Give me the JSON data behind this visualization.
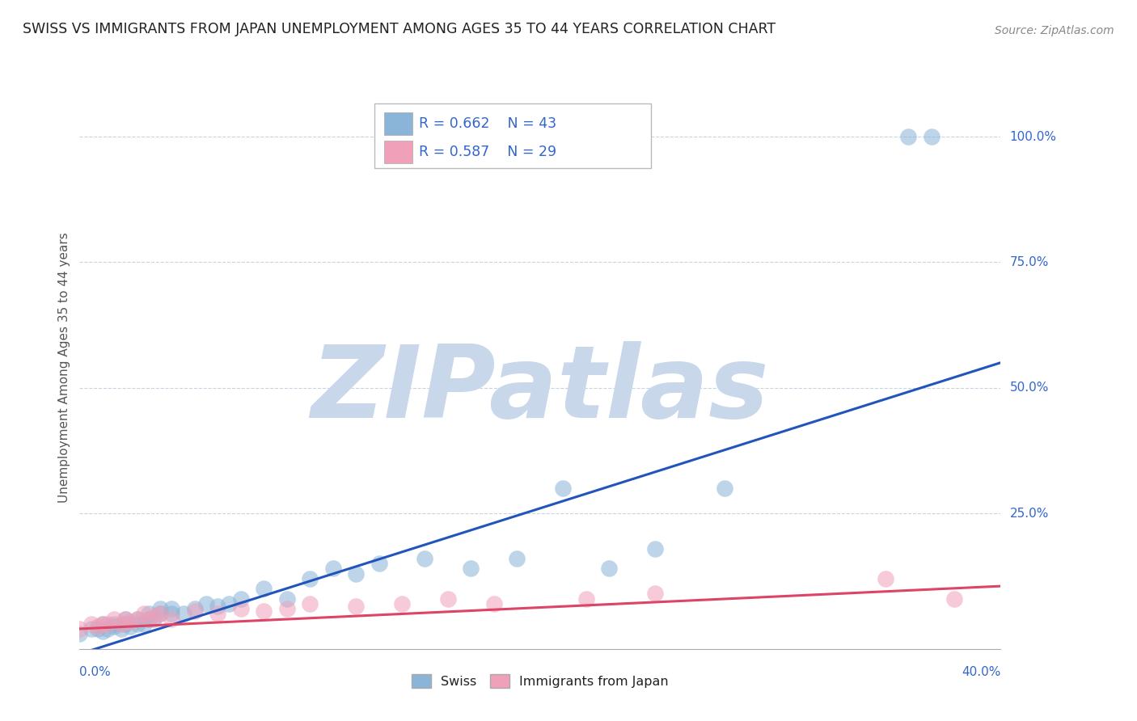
{
  "title": "SWISS VS IMMIGRANTS FROM JAPAN UNEMPLOYMENT AMONG AGES 35 TO 44 YEARS CORRELATION CHART",
  "source": "Source: ZipAtlas.com",
  "ylabel": "Unemployment Among Ages 35 to 44 years",
  "xlim": [
    0.0,
    0.4
  ],
  "ylim": [
    -0.02,
    1.1
  ],
  "ytick_labels": [
    "25.0%",
    "50.0%",
    "75.0%",
    "100.0%"
  ],
  "ytick_vals": [
    0.25,
    0.5,
    0.75,
    1.0
  ],
  "grid_color": "#c8d4e0",
  "background_color": "#ffffff",
  "watermark": "ZIPatlas",
  "watermark_color": "#c8d8ea",
  "swiss_color": "#8ab4d8",
  "japan_color": "#f0a0b8",
  "swiss_line_color": "#2255bb",
  "japan_line_color": "#dd4466",
  "swiss_R": 0.662,
  "swiss_N": 43,
  "japan_R": 0.587,
  "japan_N": 29,
  "legend_text_color": "#3366cc",
  "title_color": "#222222",
  "axis_label_color": "#555555",
  "swiss_x": [
    0.0,
    0.005,
    0.008,
    0.01,
    0.01,
    0.012,
    0.015,
    0.015,
    0.018,
    0.02,
    0.02,
    0.022,
    0.025,
    0.025,
    0.028,
    0.03,
    0.03,
    0.032,
    0.035,
    0.035,
    0.04,
    0.04,
    0.045,
    0.05,
    0.055,
    0.06,
    0.065,
    0.07,
    0.08,
    0.09,
    0.1,
    0.11,
    0.12,
    0.13,
    0.15,
    0.17,
    0.19,
    0.21,
    0.23,
    0.25,
    0.28,
    0.36,
    0.37
  ],
  "swiss_y": [
    0.01,
    0.02,
    0.02,
    0.015,
    0.03,
    0.02,
    0.025,
    0.03,
    0.02,
    0.03,
    0.04,
    0.025,
    0.03,
    0.04,
    0.03,
    0.04,
    0.05,
    0.04,
    0.05,
    0.06,
    0.05,
    0.06,
    0.05,
    0.06,
    0.07,
    0.065,
    0.07,
    0.08,
    0.1,
    0.08,
    0.12,
    0.14,
    0.13,
    0.15,
    0.16,
    0.14,
    0.16,
    0.3,
    0.14,
    0.18,
    0.3,
    1.0,
    1.0
  ],
  "japan_x": [
    0.0,
    0.005,
    0.008,
    0.01,
    0.012,
    0.015,
    0.018,
    0.02,
    0.022,
    0.025,
    0.028,
    0.03,
    0.033,
    0.035,
    0.04,
    0.05,
    0.06,
    0.07,
    0.08,
    0.09,
    0.1,
    0.12,
    0.14,
    0.16,
    0.18,
    0.22,
    0.25,
    0.35,
    0.38
  ],
  "japan_y": [
    0.02,
    0.03,
    0.025,
    0.03,
    0.03,
    0.04,
    0.03,
    0.04,
    0.035,
    0.04,
    0.05,
    0.04,
    0.045,
    0.05,
    0.04,
    0.055,
    0.05,
    0.06,
    0.055,
    0.06,
    0.07,
    0.065,
    0.07,
    0.08,
    0.07,
    0.08,
    0.09,
    0.12,
    0.08
  ],
  "swiss_line_x0": 0.0,
  "swiss_line_y0": -0.03,
  "swiss_line_x1": 0.4,
  "swiss_line_y1": 0.55,
  "japan_line_x0": 0.0,
  "japan_line_y0": 0.02,
  "japan_line_x1": 0.4,
  "japan_line_y1": 0.105
}
